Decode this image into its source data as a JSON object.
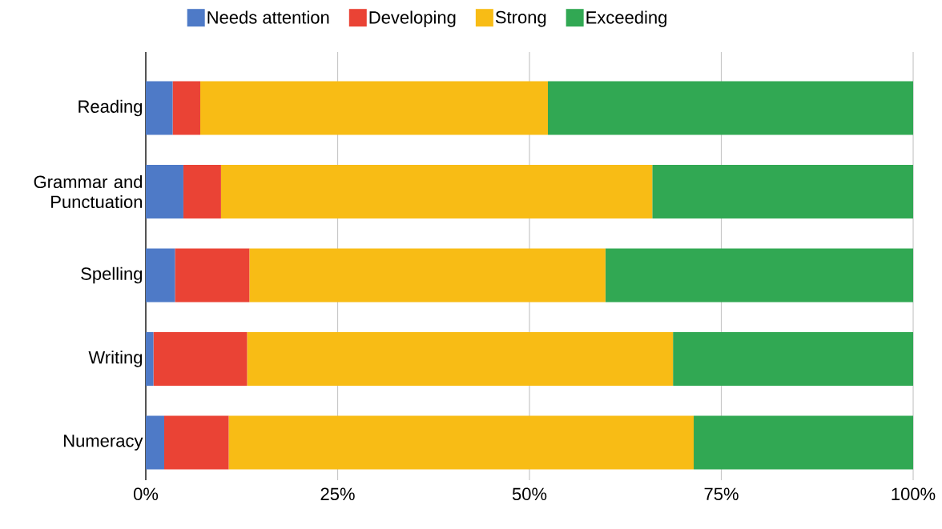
{
  "chart_data": {
    "type": "bar",
    "orientation": "horizontal",
    "stacked": true,
    "categories": [
      "Reading",
      "Grammar and Punctuation",
      "Spelling",
      "Writing",
      "Numeracy"
    ],
    "series": [
      {
        "name": "Needs attention",
        "color": "#4e7ac7",
        "values": [
          3.5,
          4.9,
          3.8,
          1.0,
          2.4
        ]
      },
      {
        "name": "Developing",
        "color": "#ea4335",
        "values": [
          3.6,
          4.9,
          9.7,
          12.2,
          8.4
        ]
      },
      {
        "name": "Strong",
        "color": "#f8bc15",
        "values": [
          45.3,
          56.2,
          46.4,
          55.5,
          60.6
        ]
      },
      {
        "name": "Exceeding",
        "color": "#31a853",
        "values": [
          47.6,
          34.0,
          40.1,
          31.3,
          28.6
        ]
      }
    ],
    "xlim": [
      0,
      100
    ],
    "xticks": [
      {
        "value": 0,
        "label": "0%"
      },
      {
        "value": 25,
        "label": "25%"
      },
      {
        "value": 50,
        "label": "50%"
      },
      {
        "value": 75,
        "label": "75%"
      },
      {
        "value": 100,
        "label": "100%"
      }
    ],
    "grid": "x",
    "legend": "top"
  }
}
